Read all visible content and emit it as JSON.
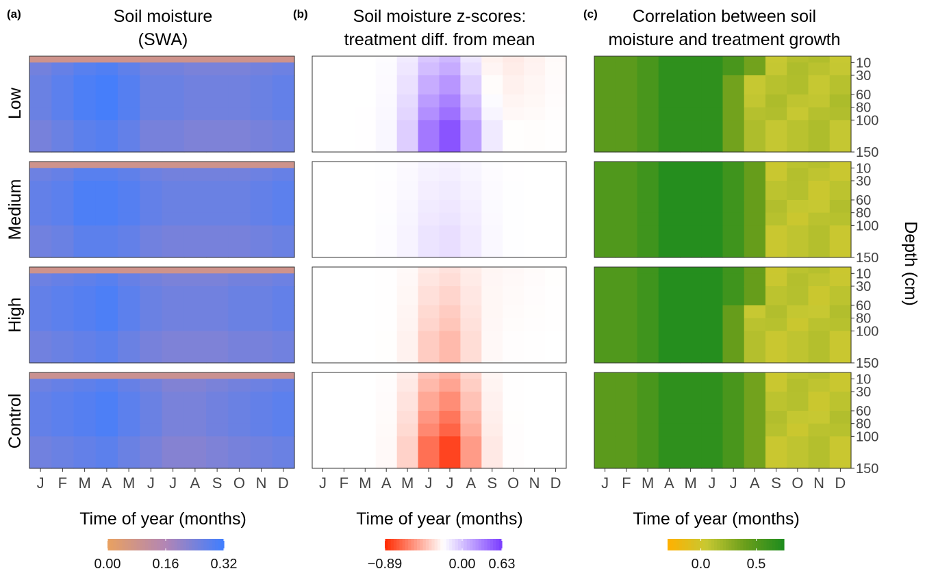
{
  "figure": {
    "panels": [
      {
        "letter": "(a)",
        "title_lines": [
          "Soil moisture",
          "(SWA)"
        ]
      },
      {
        "letter": "(b)",
        "title_lines": [
          "Soil moisture z-scores:",
          "treatment diff. from mean"
        ]
      },
      {
        "letter": "(c)",
        "title_lines": [
          "Correlation between soil",
          "moisture and treatment growth"
        ]
      }
    ],
    "rows": [
      "Low",
      "Medium",
      "High",
      "Control"
    ],
    "months": [
      "J",
      "F",
      "M",
      "A",
      "M",
      "J",
      "J",
      "A",
      "S",
      "O",
      "N",
      "D"
    ],
    "xlabel": "Time of year (months)",
    "depth_label": "Depth (cm)",
    "depth_ticks": [
      "10",
      "30",
      "60",
      "80",
      "100",
      "150"
    ]
  },
  "chart_data": [
    {
      "type": "heatmap",
      "name": "Soil moisture (SWA)",
      "xlabel": "Time of year (months)",
      "ylabel": "",
      "depths_cm": [
        0,
        10,
        30,
        60,
        80,
        100,
        150
      ],
      "colorbar": {
        "min": 0.0,
        "max": 0.32,
        "ticks": [
          "0.00",
          "0.16",
          "0.32"
        ],
        "colors": [
          "#e9a160",
          "#b285b5",
          "#3f7eff"
        ]
      },
      "rows": {
        "Low": {
          "month_profile": [
            0.26,
            0.28,
            0.3,
            0.31,
            0.29,
            0.26,
            0.26,
            0.25,
            0.25,
            0.25,
            0.26,
            0.27
          ],
          "surface_value": 0.08
        },
        "Medium": {
          "month_profile": [
            0.27,
            0.28,
            0.3,
            0.3,
            0.29,
            0.27,
            0.26,
            0.26,
            0.26,
            0.26,
            0.27,
            0.28
          ],
          "surface_value": 0.08
        },
        "High": {
          "month_profile": [
            0.27,
            0.28,
            0.29,
            0.3,
            0.28,
            0.26,
            0.25,
            0.25,
            0.25,
            0.26,
            0.26,
            0.27
          ],
          "surface_value": 0.08
        },
        "Control": {
          "month_profile": [
            0.27,
            0.28,
            0.29,
            0.3,
            0.28,
            0.26,
            0.24,
            0.24,
            0.25,
            0.26,
            0.27,
            0.28
          ],
          "surface_value": 0.09
        }
      }
    },
    {
      "type": "heatmap",
      "name": "Soil moisture z-scores: treatment diff. from mean",
      "xlabel": "Time of year (months)",
      "ylabel": "",
      "depths_cm": [
        0,
        10,
        30,
        60,
        80,
        100,
        150
      ],
      "colorbar": {
        "min": -0.89,
        "max": 0.63,
        "ticks": [
          "−0.89",
          "0.00",
          "0.63"
        ],
        "colors": [
          "#ff2a00",
          "#ffffff",
          "#7a3cff"
        ]
      },
      "rows": {
        "Low": {
          "peak_value": 0.63,
          "peak_month": 6.3,
          "spread": 1.6,
          "late_value": -0.1
        },
        "Medium": {
          "peak_value": 0.12,
          "peak_month": 6.3,
          "spread": 1.8,
          "late_value": 0.0
        },
        "High": {
          "peak_value": -0.33,
          "peak_month": 6.3,
          "spread": 1.4,
          "late_value": -0.03
        },
        "Control": {
          "peak_value": -0.89,
          "peak_month": 6.3,
          "spread": 1.5,
          "late_value": 0.0
        }
      }
    },
    {
      "type": "heatmap",
      "name": "Correlation between soil moisture and treatment growth",
      "xlabel": "Time of year (months)",
      "ylabel": "Depth (cm)",
      "depths_cm": [
        0,
        10,
        30,
        60,
        80,
        100,
        150
      ],
      "colorbar": {
        "min": -0.3,
        "max": 0.75,
        "ticks": [
          "0.0",
          "0.5"
        ],
        "tick_values": [
          0.0,
          0.5
        ],
        "colors": [
          "#ffb000",
          "#c7c832",
          "#6a9e1b",
          "#1e8c1e"
        ]
      },
      "rows": {
        "Low": {
          "early_value": 0.55,
          "cutoff_month": 7.5,
          "late_value": 0.1
        },
        "Medium": {
          "early_value": 0.6,
          "cutoff_month": 8.2,
          "late_value": 0.08
        },
        "High": {
          "early_value": 0.6,
          "cutoff_month": 7.8,
          "late_value": 0.08
        },
        "Control": {
          "early_value": 0.55,
          "cutoff_month": 8.2,
          "late_value": 0.08
        }
      }
    }
  ]
}
